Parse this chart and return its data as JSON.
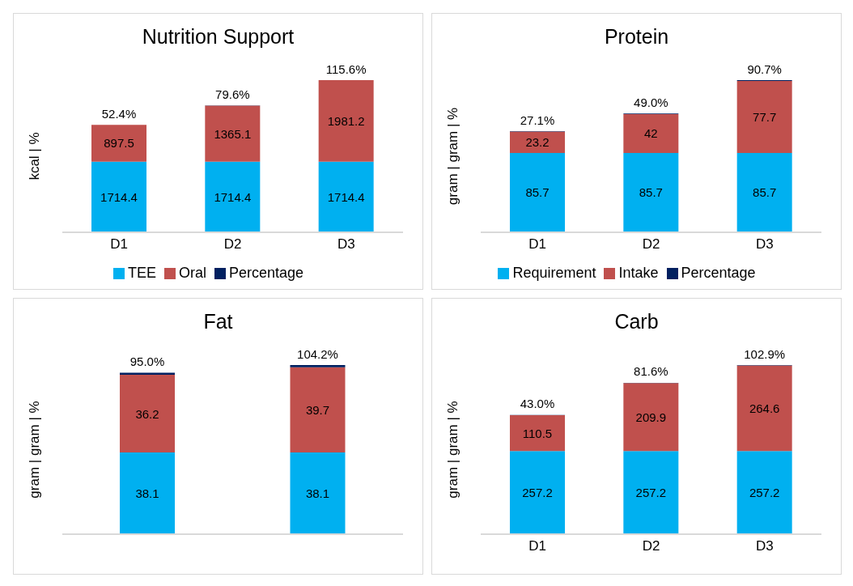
{
  "chart_data": [
    {
      "type": "bar",
      "title": "Nutrition Support",
      "ylabel": "kcal | %",
      "categories": [
        "D1",
        "D2",
        "D3"
      ],
      "stacked": true,
      "legend": "bottom",
      "series": [
        {
          "name": "TEE",
          "color": "#00b0f0",
          "values": [
            1714.4,
            1714.4,
            1714.4
          ],
          "value_labels": [
            "1714.4",
            "1714.4",
            "1714.4"
          ]
        },
        {
          "name": "Oral",
          "color": "#c0504d",
          "values": [
            897.5,
            1365.1,
            1981.2
          ],
          "value_labels": [
            "897.5",
            "1365.1",
            "1981.2"
          ]
        },
        {
          "name": "Percentage",
          "color": "#002060",
          "values": [
            0.524,
            0.796,
            1.156
          ],
          "value_labels": [
            "52.4%",
            "79.6%",
            "115.6%"
          ]
        }
      ]
    },
    {
      "type": "bar",
      "title": "Protein",
      "ylabel": "gram | gram | %",
      "categories": [
        "D1",
        "D2",
        "D3"
      ],
      "stacked": true,
      "legend": "bottom",
      "series": [
        {
          "name": "Requirement",
          "color": "#00b0f0",
          "values": [
            85.7,
            85.7,
            85.7
          ],
          "value_labels": [
            "85.7",
            "85.7",
            "85.7"
          ]
        },
        {
          "name": "Intake",
          "color": "#c0504d",
          "values": [
            23.2,
            42,
            77.7
          ],
          "value_labels": [
            "23.2",
            "42",
            "77.7"
          ]
        },
        {
          "name": "Percentage",
          "color": "#002060",
          "values": [
            0.271,
            0.49,
            0.907
          ],
          "value_labels": [
            "27.1%",
            "49.0%",
            "90.7%"
          ]
        }
      ]
    },
    {
      "type": "bar",
      "title": "Fat",
      "ylabel": "gram | gram | %",
      "categories": [
        null,
        null
      ],
      "stacked": true,
      "legend": false,
      "series": [
        {
          "color": "#00b0f0",
          "values": [
            38.1,
            38.1
          ],
          "value_labels": [
            "38.1",
            "38.1"
          ]
        },
        {
          "color": "#c0504d",
          "values": [
            36.2,
            39.7
          ],
          "value_labels": [
            "36.2",
            "39.7"
          ]
        },
        {
          "color": "#002060",
          "values": [
            0.95,
            1.042
          ],
          "value_labels": [
            "95.0%",
            "104.2%"
          ]
        }
      ]
    },
    {
      "type": "bar",
      "title": "Carb",
      "ylabel": "gram | gram | %",
      "categories": [
        "D1",
        "D2",
        "D3"
      ],
      "stacked": true,
      "legend": false,
      "series": [
        {
          "color": "#00b0f0",
          "values": [
            257.2,
            257.2,
            257.2
          ],
          "value_labels": [
            "257.2",
            "257.2",
            "257.2"
          ]
        },
        {
          "color": "#c0504d",
          "values": [
            110.5,
            209.9,
            264.6
          ],
          "value_labels": [
            "110.5",
            "209.9",
            "264.6"
          ]
        },
        {
          "color": "#002060",
          "values": [
            0.43,
            0.816,
            1.029
          ],
          "value_labels": [
            "43.0%",
            "81.6%",
            "102.9%"
          ]
        }
      ]
    }
  ]
}
